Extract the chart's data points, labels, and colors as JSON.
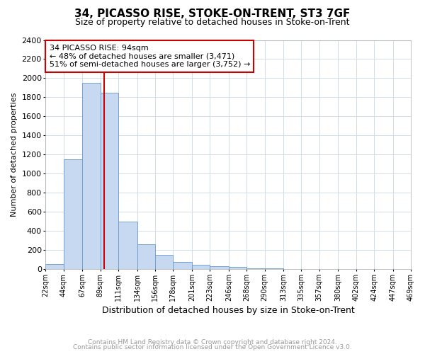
{
  "title_line1": "34, PICASSO RISE, STOKE-ON-TRENT, ST3 7GF",
  "title_line2": "Size of property relative to detached houses in Stoke-on-Trent",
  "xlabel": "Distribution of detached houses by size in Stoke-on-Trent",
  "ylabel": "Number of detached properties",
  "footnote1": "Contains HM Land Registry data © Crown copyright and database right 2024.",
  "footnote2": "Contains public sector information licensed under the Open Government Licence v3.0.",
  "property_label_size": "94sqm",
  "annotation_text": "34 PICASSO RISE: 94sqm\n← 48% of detached houses are smaller (3,471)\n51% of semi-detached houses are larger (3,752) →",
  "bar_left_edges": [
    22,
    44,
    67,
    89,
    111,
    134,
    156,
    178,
    201,
    223,
    246,
    268,
    290,
    313,
    335,
    357,
    380,
    402,
    424,
    447
  ],
  "bar_rights": [
    44,
    67,
    89,
    111,
    134,
    156,
    178,
    201,
    223,
    246,
    268,
    290,
    313,
    335,
    357,
    380,
    402,
    424,
    447,
    469
  ],
  "bar_heights": [
    50,
    1150,
    1950,
    1850,
    500,
    260,
    150,
    75,
    45,
    30,
    20,
    10,
    5,
    3,
    2,
    1,
    1,
    1,
    1,
    1
  ],
  "bar_color": "#c6d9f0",
  "bar_edgecolor": "#6699cc",
  "vline_x": 94,
  "vline_color": "#cc0000",
  "ylim": [
    0,
    2400
  ],
  "xlim": [
    22,
    469
  ],
  "yticks": [
    0,
    200,
    400,
    600,
    800,
    1000,
    1200,
    1400,
    1600,
    1800,
    2000,
    2200,
    2400
  ],
  "xtick_labels": [
    "22sqm",
    "44sqm",
    "67sqm",
    "89sqm",
    "111sqm",
    "134sqm",
    "156sqm",
    "178sqm",
    "201sqm",
    "223sqm",
    "246sqm",
    "268sqm",
    "290sqm",
    "313sqm",
    "335sqm",
    "357sqm",
    "380sqm",
    "402sqm",
    "424sqm",
    "447sqm",
    "469sqm"
  ],
  "xtick_positions": [
    22,
    44,
    67,
    89,
    111,
    134,
    156,
    178,
    201,
    223,
    246,
    268,
    290,
    313,
    335,
    357,
    380,
    402,
    424,
    447,
    469
  ],
  "annotation_box_color": "#ffffff",
  "annotation_box_edgecolor": "#cc0000",
  "grid_color": "#d0dde8",
  "background_color": "#ffffff",
  "title_fontsize": 11,
  "subtitle_fontsize": 9,
  "ylabel_fontsize": 8,
  "xlabel_fontsize": 9,
  "footnote_fontsize": 6.5,
  "footnote_color": "#999999"
}
